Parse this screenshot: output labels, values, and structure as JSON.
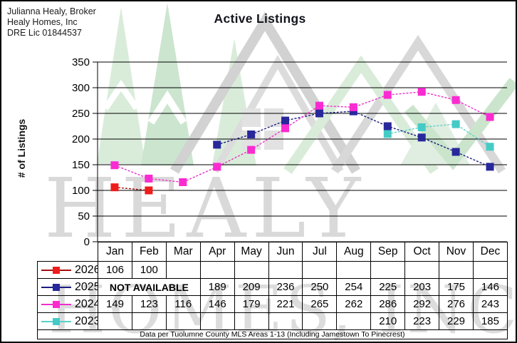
{
  "broker_info": {
    "line1": "Julianna Healy, Broker",
    "line2": "Healy Homes, Inc",
    "line3": "DRE Lic 01844537"
  },
  "watermark": {
    "line1": "HEALY",
    "line2": "HOMES, INC"
  },
  "footnote": "Data per Tuolumne County MLS Areas 1-13 (Including Jamestown To Pinecrest)",
  "chart_data": {
    "type": "line",
    "title": "Active Listings",
    "ylabel": "# of Listings",
    "xlabel": "",
    "ylim": [
      0,
      350
    ],
    "ytick_step": 50,
    "grid": true,
    "legend_position": "table-left",
    "categories": [
      "Jan",
      "Feb",
      "Mar",
      "Apr",
      "May",
      "Jun",
      "Jul",
      "Aug",
      "Sep",
      "Oct",
      "Nov",
      "Dec"
    ],
    "series": [
      {
        "name": "2026",
        "color": "#ee1c1c",
        "line_color": "#a50f0f",
        "values": [
          106,
          100,
          null,
          null,
          null,
          null,
          null,
          null,
          null,
          null,
          null,
          null
        ]
      },
      {
        "name": "2025",
        "color": "#28289b",
        "line_color": "#1c1c82",
        "note": "NOT AVAILABLE",
        "note_span": 3,
        "values": [
          null,
          null,
          null,
          189,
          209,
          236,
          250,
          254,
          225,
          203,
          175,
          146
        ]
      },
      {
        "name": "2024",
        "color": "#fb2bd2",
        "line_color": "#ee30c9",
        "values": [
          149,
          123,
          116,
          146,
          179,
          221,
          265,
          262,
          286,
          292,
          276,
          243
        ]
      },
      {
        "name": "2023",
        "color": "#45cbc6",
        "line_color": "#57d1cb",
        "values": [
          null,
          null,
          null,
          null,
          null,
          null,
          null,
          null,
          210,
          223,
          229,
          185
        ]
      }
    ],
    "draw_order": [
      3,
      1,
      2,
      0
    ]
  }
}
